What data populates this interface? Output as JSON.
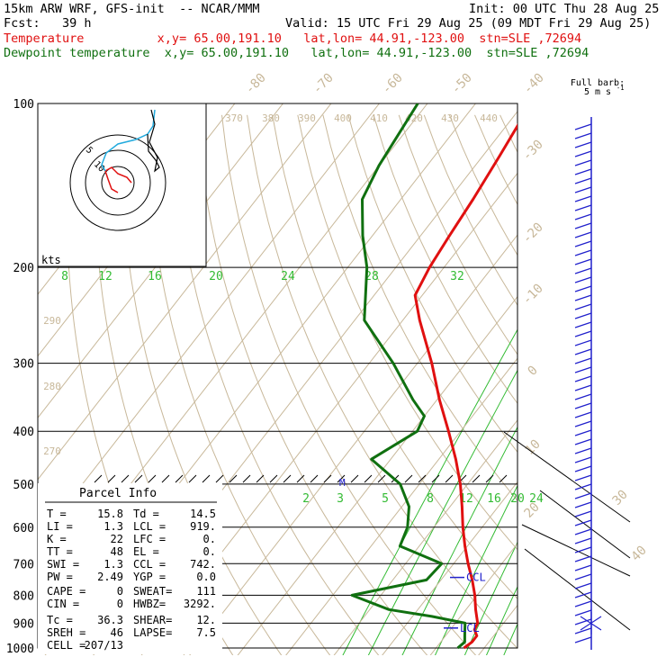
{
  "header": {
    "model": "15km ARW WRF, GFS-init  -- NCAR/MMM",
    "init": "Init: 00 UTC Thu 28 Aug 25",
    "fcst": "Fcst:   39 h",
    "valid": "Valid: 15 UTC Fri 29 Aug 25 (09 MDT Fri 29 Aug 25)",
    "temp_line": "Temperature          x,y= 65.00,191.10   lat,lon= 44.91,-123.00  stn=SLE ,72694",
    "dewp_line": "Dewpoint temperature  x,y= 65.00,191.10   lat,lon= 44.91,-123.00  stn=SLE ,72694"
  },
  "colors": {
    "temperature": "#e01010",
    "dewpoint": "#107010",
    "theta": "#c8b89a",
    "mixing": "#33bb33",
    "wind": "#2020cc",
    "hodo_cyan": "#22aadd"
  },
  "barb_label": {
    "line1": "Full barb:",
    "line2": "5 m s"
  },
  "chart_data": {
    "type": "skew-T log-P",
    "title": "15km ARW WRF, GFS-init  -- NCAR/MMM",
    "series": [
      {
        "name": "Temperature",
        "points": [
          [
            1000,
            15.8
          ],
          [
            975,
            16.5
          ],
          [
            950,
            16.5
          ],
          [
            925,
            15.0
          ],
          [
            900,
            14.6
          ],
          [
            850,
            12.0
          ],
          [
            800,
            9.5
          ],
          [
            750,
            6.5
          ],
          [
            700,
            3.0
          ],
          [
            650,
            -0.5
          ],
          [
            600,
            -4.0
          ],
          [
            550,
            -7.5
          ],
          [
            500,
            -11.5
          ],
          [
            450,
            -16.5
          ],
          [
            400,
            -22.5
          ],
          [
            350,
            -29.5
          ],
          [
            300,
            -37.0
          ],
          [
            250,
            -46.5
          ],
          [
            225,
            -51.5
          ],
          [
            200,
            -53.0
          ],
          [
            175,
            -54.0
          ],
          [
            150,
            -55.0
          ],
          [
            125,
            -56.5
          ],
          [
            100,
            -58.5
          ]
        ]
      },
      {
        "name": "Dewpoint temperature",
        "points": [
          [
            1000,
            14.5
          ],
          [
            975,
            15.0
          ],
          [
            950,
            14.0
          ],
          [
            925,
            13.0
          ],
          [
            900,
            12.0
          ],
          [
            875,
            4.0
          ],
          [
            850,
            -6.0
          ],
          [
            800,
            -16.0
          ],
          [
            750,
            -3.0
          ],
          [
            700,
            -2.5
          ],
          [
            650,
            -14.0
          ],
          [
            600,
            -15.5
          ],
          [
            550,
            -18.5
          ],
          [
            500,
            -24.0
          ],
          [
            450,
            -34.0
          ],
          [
            400,
            -29.0
          ],
          [
            375,
            -30.0
          ],
          [
            350,
            -35.0
          ],
          [
            300,
            -45.0
          ],
          [
            250,
            -58.0
          ],
          [
            200,
            -66.0
          ],
          [
            175,
            -72.0
          ],
          [
            150,
            -78.0
          ],
          [
            130,
            -80.0
          ],
          [
            100,
            -82.0
          ]
        ]
      }
    ],
    "pressure_levels": [
      100,
      200,
      300,
      400,
      500,
      600,
      700,
      800,
      900,
      1000
    ],
    "isotherm_labels": [
      "-80",
      "-70",
      "-60",
      "-50",
      "-40",
      "-30",
      "-20",
      "-10",
      "0",
      "10",
      "20",
      "30",
      "40"
    ],
    "theta_labels": [
      "370",
      "380",
      "390",
      "400",
      "410",
      "420",
      "430",
      "440",
      "290",
      "280",
      "270"
    ],
    "mixing_ratio_labels_top": [
      "8",
      "12",
      "16",
      "20",
      "24",
      "28",
      "32"
    ],
    "mixing_ratio_labels_mid": [
      "2",
      "3",
      "5",
      "8",
      "12",
      "16",
      "20",
      "24"
    ],
    "markers": {
      "ccl": "CCL",
      "lcl": "LCL",
      "mid": "M"
    },
    "hodograph": {
      "units": "kts",
      "ring_labels": [
        "5",
        "10"
      ]
    },
    "parcel_info": {
      "title": "Parcel Info",
      "rows": [
        {
          "k1": "T  =",
          "v1": "15.8",
          "k2": "Td =",
          "v2": "14.5"
        },
        {
          "k1": "LI =",
          "v1": "1.3",
          "k2": "LCL =",
          "v2": "919."
        },
        {
          "k1": "K  =",
          "v1": "22",
          "k2": "LFC =",
          "v2": "0."
        },
        {
          "k1": "TT =",
          "v1": "48",
          "k2": "EL  =",
          "v2": "0."
        },
        {
          "k1": "SWI =",
          "v1": "1.3",
          "k2": "CCL =",
          "v2": "742."
        },
        {
          "k1": "PW =",
          "v1": "2.49",
          "k2": "YGP =",
          "v2": "0.0"
        },
        {
          "k1": "CAPE =",
          "v1": "0",
          "k2": "SWEAT=",
          "v2": "111"
        },
        {
          "k1": "CIN =",
          "v1": "0",
          "k2": "HWBZ=",
          "v2": "3292."
        },
        {
          "k1": "Tc =",
          "v1": "36.3",
          "k2": "SHEAR=",
          "v2": "12."
        },
        {
          "k1": "SREH =",
          "v1": "46",
          "k2": "LAPSE=",
          "v2": "7.5"
        },
        {
          "k1": "CELL =",
          "v1": "207/13",
          "k2": "",
          "v2": ""
        }
      ]
    }
  }
}
